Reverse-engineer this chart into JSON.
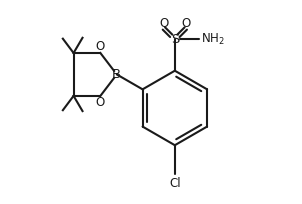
{
  "bg_color": "#ffffff",
  "line_color": "#1a1a1a",
  "line_width": 1.5,
  "font_size": 8.5,
  "fig_width": 3.02,
  "fig_height": 2.04,
  "dpi": 100,
  "xlim": [
    0,
    10
  ],
  "ylim": [
    0,
    6.8
  ]
}
